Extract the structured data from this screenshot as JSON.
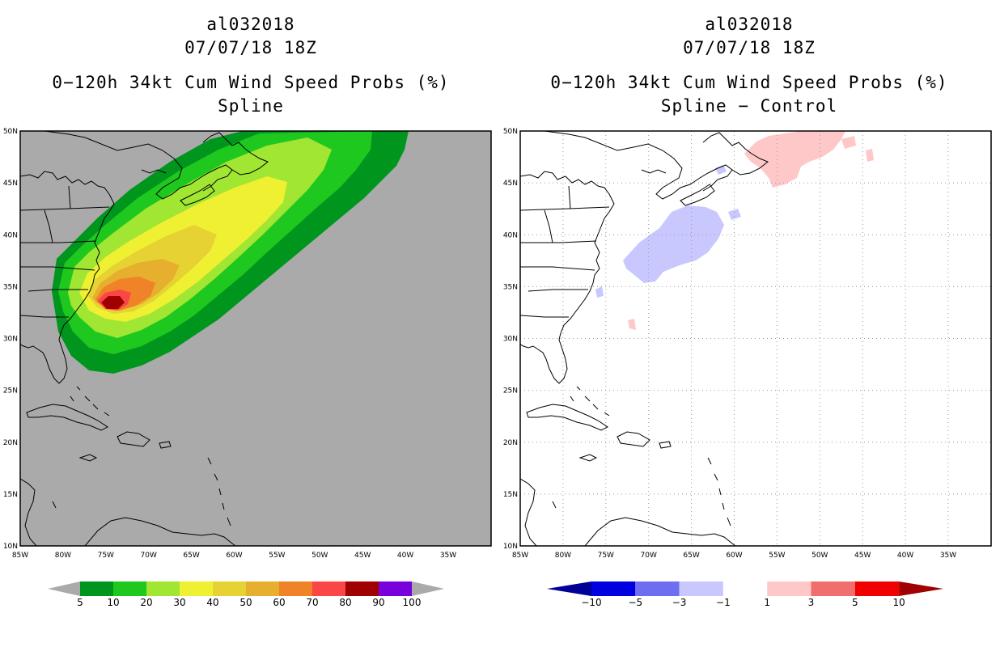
{
  "left_panel": {
    "storm_id": "al032018",
    "datetime": "07/07/18 18Z",
    "product": "0−120h 34kt Cum Wind Speed Probs (%)",
    "method": "Spline",
    "background_color": "#aaaaaa"
  },
  "right_panel": {
    "storm_id": "al032018",
    "datetime": "07/07/18 18Z",
    "product": "0−120h 34kt Cum Wind Speed Probs (%)",
    "method": "Spline − Control",
    "background_color": "#ffffff"
  },
  "map": {
    "lon_labels": [
      "85W",
      "80W",
      "75W",
      "70W",
      "65W",
      "60W",
      "55W",
      "50W",
      "45W",
      "40W",
      "35W"
    ],
    "lat_labels": [
      "10N",
      "15N",
      "20N",
      "25N",
      "30N",
      "35N",
      "40N",
      "45N",
      "50N"
    ]
  },
  "left_colorbar": {
    "labels": [
      "5",
      "10",
      "20",
      "30",
      "40",
      "50",
      "60",
      "70",
      "80",
      "90",
      "100"
    ],
    "colors": [
      "#00961e",
      "#1ec81e",
      "#a0e632",
      "#f0f032",
      "#e6d232",
      "#e6af2d",
      "#f08228",
      "#fa4646",
      "#a00000",
      "#7800dc"
    ],
    "end_color": "#aaaaaa"
  },
  "right_colorbar": {
    "labels": [
      "−10",
      "−5",
      "−3",
      "−1",
      "1",
      "3",
      "5",
      "10"
    ],
    "colors": [
      "#0000e1",
      "#6e6ef0",
      "#c8c8ff",
      "#ffffff",
      "#ffc8c8",
      "#f06e6e",
      "#f00000"
    ],
    "end_low": "#000096",
    "end_high": "#a00000"
  },
  "chart_data": {
    "type": "map",
    "panels": [
      {
        "title": "al032018 07/07/18 18Z 0−120h 34kt Cum Wind Speed Probs (%) Spline",
        "variable": "34kt cumulative wind speed probability (%)",
        "lon_range": [
          -85,
          -30
        ],
        "lat_range": [
          10,
          50
        ],
        "max_center": {
          "lon": -74.5,
          "lat": 33.1,
          "value": ">80"
        },
        "contour_levels": [
          5,
          10,
          20,
          30,
          40,
          50,
          60,
          70,
          80,
          90,
          100
        ]
      },
      {
        "title": "al032018 07/07/18 18Z 0−120h 34kt Cum Wind Speed Probs (%) Spline − Control",
        "variable": "probability difference (%)",
        "lon_range": [
          -85,
          -30
        ],
        "lat_range": [
          10,
          50
        ],
        "contour_levels": [
          -10,
          -5,
          -3,
          -1,
          1,
          3,
          5,
          10
        ],
        "negative_regions": [
          "south of Nova Scotia 35N-43N 63W-72W"
        ],
        "positive_regions": [
          "Newfoundland 45N-50N 45W-59W"
        ]
      }
    ]
  }
}
